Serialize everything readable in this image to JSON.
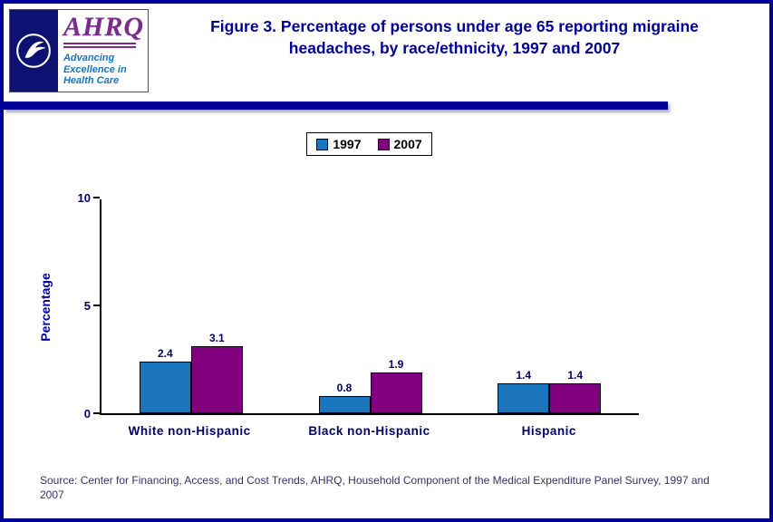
{
  "header": {
    "logo": {
      "wordmark": "AHRQ",
      "tagline": [
        "Advancing",
        "Excellence in",
        "Health Care"
      ]
    },
    "title_prefix": "Figure 3.",
    "title_rest": " Percentage of persons under age 65 reporting migraine headaches, by race/ethnicity, 1997 and 2007"
  },
  "chart_data": {
    "type": "bar",
    "title": "Percentage of persons under age 65 reporting migraine headaches, by race/ethnicity, 1997 and 2007",
    "categories": [
      "White non-Hispanic",
      "Black non-Hispanic",
      "Hispanic"
    ],
    "series": [
      {
        "name": "1997",
        "color": "#1b75bc",
        "values": [
          2.4,
          0.8,
          1.4
        ]
      },
      {
        "name": "2007",
        "color": "#800080",
        "values": [
          3.1,
          1.9,
          1.4
        ]
      }
    ],
    "xlabel": "",
    "ylabel": "Percentage",
    "ylim": [
      0,
      10
    ],
    "yticks": [
      0,
      5,
      10
    ],
    "grid": false,
    "legend_position": "top"
  },
  "source": {
    "text": "Source: Center for Financing, Access, and Cost Trends, AHRQ, Household Component of the Medical Expenditure Panel Survey, 1997 and 2007"
  },
  "colors": {
    "accent_navy": "#000099",
    "bar_blue": "#1b75bc",
    "bar_purple": "#800080"
  }
}
